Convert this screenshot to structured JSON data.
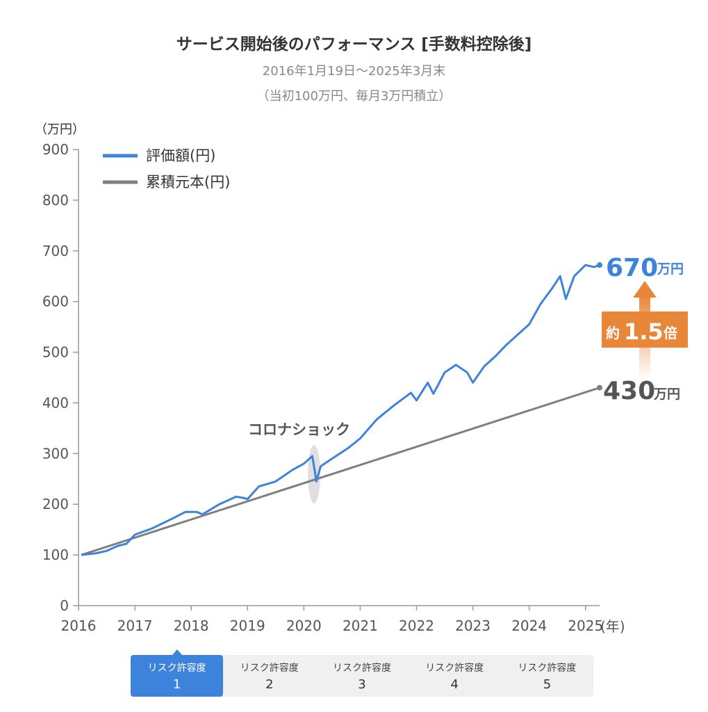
{
  "header": {
    "title": "サービス開始後のパフォーマンス [手数料控除後]",
    "subtitle1": "2016年1月19日〜2025年3月末",
    "subtitle2": "（当初100万円、毎月3万円積立）"
  },
  "chart_data": {
    "type": "line",
    "y_unit_label": "（万円）",
    "x_unit_label": "(年)",
    "xlim": [
      2016,
      2025.25
    ],
    "ylim": [
      0,
      900
    ],
    "y_ticks": [
      0,
      100,
      200,
      300,
      400,
      500,
      600,
      700,
      800,
      900
    ],
    "x_ticks": [
      2016,
      2017,
      2018,
      2019,
      2020,
      2021,
      2022,
      2023,
      2024,
      2025
    ],
    "legend_position": "top-left",
    "series": [
      {
        "name": "評価額(円)",
        "color": "#3d83db",
        "x": [
          2016.05,
          2016.3,
          2016.5,
          2016.7,
          2016.85,
          2017.0,
          2017.3,
          2017.6,
          2017.9,
          2018.1,
          2018.2,
          2018.5,
          2018.8,
          2018.95,
          2019.0,
          2019.2,
          2019.5,
          2019.8,
          2020.0,
          2020.15,
          2020.2,
          2020.22,
          2020.3,
          2020.5,
          2020.8,
          2021.0,
          2021.3,
          2021.6,
          2021.9,
          2022.0,
          2022.2,
          2022.3,
          2022.5,
          2022.7,
          2022.9,
          2023.0,
          2023.2,
          2023.4,
          2023.6,
          2023.8,
          2024.0,
          2024.2,
          2024.4,
          2024.55,
          2024.65,
          2024.8,
          2025.0,
          2025.15,
          2025.25
        ],
        "y": [
          100,
          103,
          108,
          118,
          122,
          140,
          152,
          168,
          185,
          185,
          180,
          200,
          215,
          212,
          210,
          235,
          245,
          268,
          280,
          295,
          262,
          245,
          275,
          290,
          312,
          330,
          368,
          395,
          420,
          405,
          440,
          418,
          460,
          475,
          460,
          440,
          472,
          492,
          515,
          535,
          555,
          595,
          625,
          650,
          605,
          650,
          672,
          668,
          672
        ]
      },
      {
        "name": "累積元本(円)",
        "color": "#7f7f7f",
        "x": [
          2016.05,
          2025.25
        ],
        "y": [
          100,
          430
        ]
      }
    ],
    "annotations": {
      "corona": "コロナショック",
      "final_value": "670",
      "final_principal": "430",
      "unit": "万円",
      "ratio_prefix": "約",
      "ratio_value": "1.5",
      "ratio_suffix": "倍"
    }
  },
  "tabs": [
    {
      "label": "リスク許容度",
      "num": "1",
      "active": true
    },
    {
      "label": "リスク許容度",
      "num": "2",
      "active": false
    },
    {
      "label": "リスク許容度",
      "num": "3",
      "active": false
    },
    {
      "label": "リスク許容度",
      "num": "4",
      "active": false
    },
    {
      "label": "リスク許容度",
      "num": "5",
      "active": false
    }
  ],
  "colors": {
    "accent": "#3d83db",
    "principal": "#7f7f7f",
    "arrow": "#e8873a"
  }
}
